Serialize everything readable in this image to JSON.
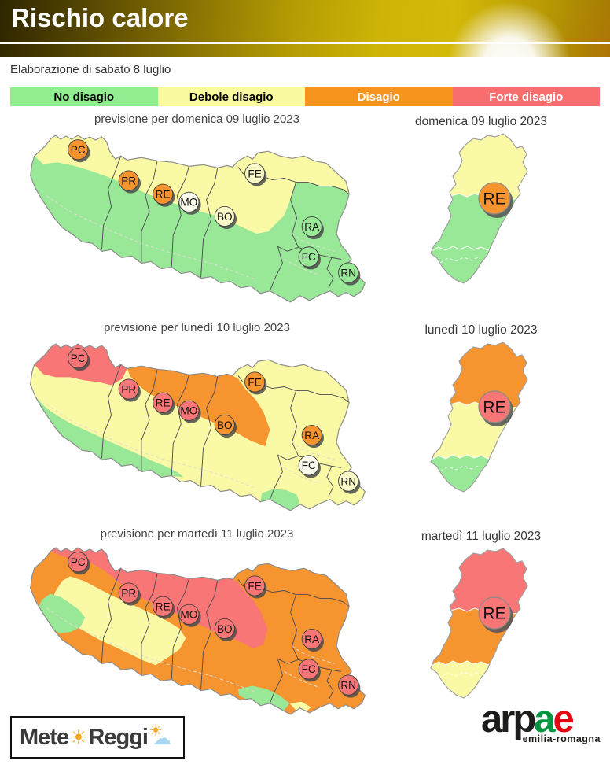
{
  "header": {
    "title": "Rischio calore"
  },
  "elaboration": "Elaborazione di sabato 8 luglio",
  "legend": [
    {
      "label": "No disagio",
      "color": "#90EE90",
      "text_color": "#000000"
    },
    {
      "label": "Debole disagio",
      "color": "#FAFA9E",
      "text_color": "#000000"
    },
    {
      "label": "Disagio",
      "color": "#F7941E",
      "text_color": "#FFFFFF"
    },
    {
      "label": "Forte disagio",
      "color": "#F86E6E",
      "text_color": "#FFFFFF"
    }
  ],
  "palette": {
    "green": "#98E898",
    "yellow": "#FAFAA6",
    "orange": "#F6942F",
    "red": "#F87676",
    "pale_yellow": "#FAFAC8",
    "near_white": "#FCFCEE"
  },
  "provinces": [
    "PC",
    "PR",
    "RE",
    "MO",
    "BO",
    "FE",
    "RA",
    "FC",
    "RN"
  ],
  "days": [
    {
      "map_title": "previsione per domenica 09 luglio 2023",
      "re_title": "domenica 09 luglio 2023",
      "region": {
        "base": "green",
        "overlays": [
          {
            "zone": "d1_north",
            "color": "yellow"
          }
        ]
      },
      "markers": {
        "PC": "orange",
        "PR": "orange",
        "RE": "orange",
        "MO": "near_white",
        "BO": "pale_yellow",
        "FE": "pale_yellow",
        "RA": "green",
        "FC": "green",
        "RN": "green"
      },
      "re_zones": {
        "north": "yellow",
        "mid": "green",
        "south": "green"
      },
      "re_marker": "orange"
    },
    {
      "map_title": "previsione per lunedì 10 luglio 2023",
      "re_title": "lunedì 10 luglio 2023",
      "region": {
        "base": "yellow",
        "overlays": [
          {
            "zone": "d2_pc",
            "color": "red"
          },
          {
            "zone": "d2_north",
            "color": "orange"
          },
          {
            "zone": "d2_sw",
            "color": "green"
          },
          {
            "zone": "d2_se",
            "color": "green"
          }
        ]
      },
      "markers": {
        "PC": "red",
        "PR": "red",
        "RE": "red",
        "MO": "red",
        "BO": "orange",
        "FE": "orange",
        "RA": "orange",
        "FC": "near_white",
        "RN": "pale_yellow"
      },
      "re_zones": {
        "north": "orange",
        "mid": "yellow",
        "south": "green"
      },
      "re_marker": "red"
    },
    {
      "map_title": "previsione per martedì 11 luglio 2023",
      "re_title": "martedì 11 luglio 2023",
      "region": {
        "base": "orange",
        "overlays": [
          {
            "zone": "d3_yellow",
            "color": "yellow"
          },
          {
            "zone": "d3_green_w",
            "color": "green"
          },
          {
            "zone": "d3_red",
            "color": "red"
          },
          {
            "zone": "d3_green_s",
            "color": "green"
          },
          {
            "zone": "d3_yellow_s",
            "color": "yellow"
          }
        ]
      },
      "markers": {
        "PC": "red",
        "PR": "red",
        "RE": "red",
        "MO": "red",
        "BO": "red",
        "FE": "red",
        "RA": "red",
        "FC": "red",
        "RN": "red"
      },
      "re_zones": {
        "north": "red",
        "mid": "orange",
        "south": "yellow"
      },
      "re_marker": "red"
    }
  ],
  "footer": {
    "meteo": {
      "part1": "Mete",
      "part2": "Reggi"
    },
    "arpae": {
      "black": "arp",
      "green_letter": "a",
      "red_letter": "e",
      "subtitle": "emilia-romagna",
      "green": "#009540",
      "red": "#E30613"
    }
  }
}
